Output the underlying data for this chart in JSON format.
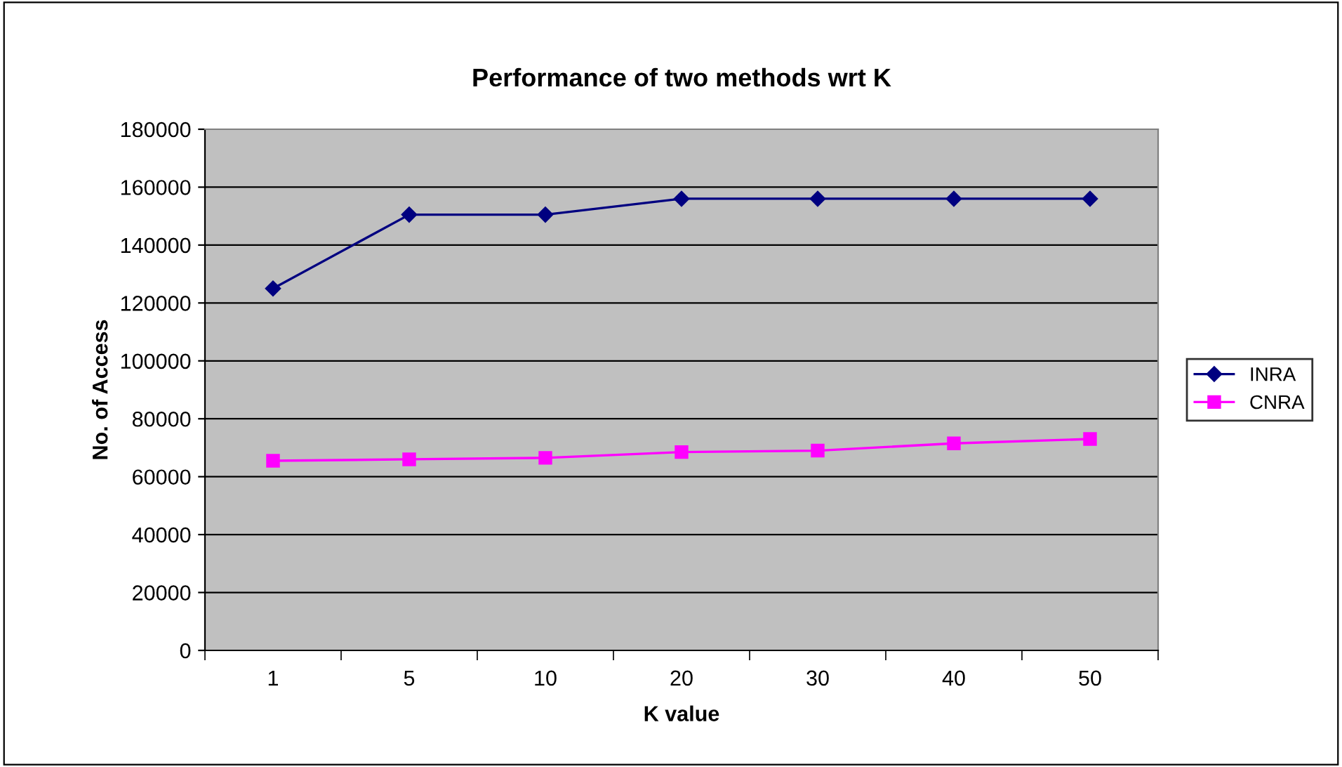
{
  "chart_data": {
    "type": "line",
    "title": "Performance of two methods wrt K",
    "xlabel": "K value",
    "ylabel": "No. of Access",
    "categories": [
      "1",
      "5",
      "10",
      "20",
      "30",
      "40",
      "50"
    ],
    "series": [
      {
        "name": "INRA",
        "color": "#000080",
        "marker": "diamond",
        "values": [
          125000,
          150500,
          150500,
          156000,
          156000,
          156000,
          156000
        ]
      },
      {
        "name": "CNRA",
        "color": "#ff00ff",
        "marker": "square",
        "values": [
          65500,
          66000,
          66500,
          68500,
          69000,
          71500,
          73000
        ]
      }
    ],
    "ylim": [
      0,
      180000
    ],
    "yticks": [
      0,
      20000,
      40000,
      60000,
      80000,
      100000,
      120000,
      140000,
      160000,
      180000
    ],
    "grid": "y",
    "legend": "right"
  }
}
